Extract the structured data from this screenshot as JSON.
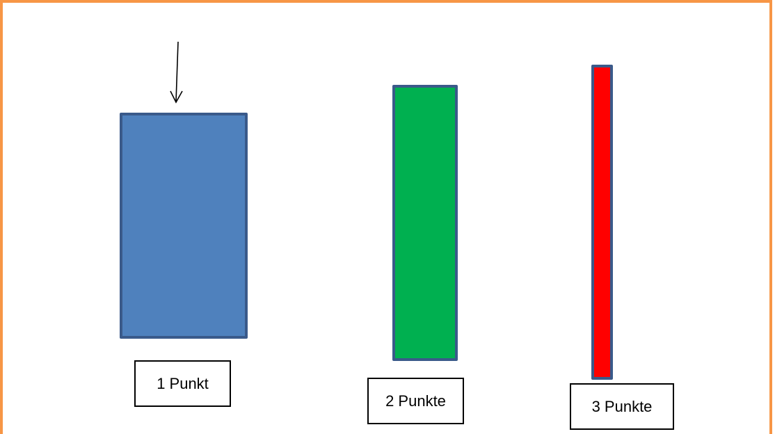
{
  "colors": {
    "frame": "#f79646",
    "outline": "#3a5a8a",
    "target_1": "#4f81bd",
    "target_2": "#00b050",
    "target_3": "#ff0000"
  },
  "targets": [
    {
      "label": "1 Punkt"
    },
    {
      "label": "2 Punkte"
    },
    {
      "label": "3 Punkte"
    }
  ],
  "arrow": {
    "icon": "down-arrow-icon"
  }
}
